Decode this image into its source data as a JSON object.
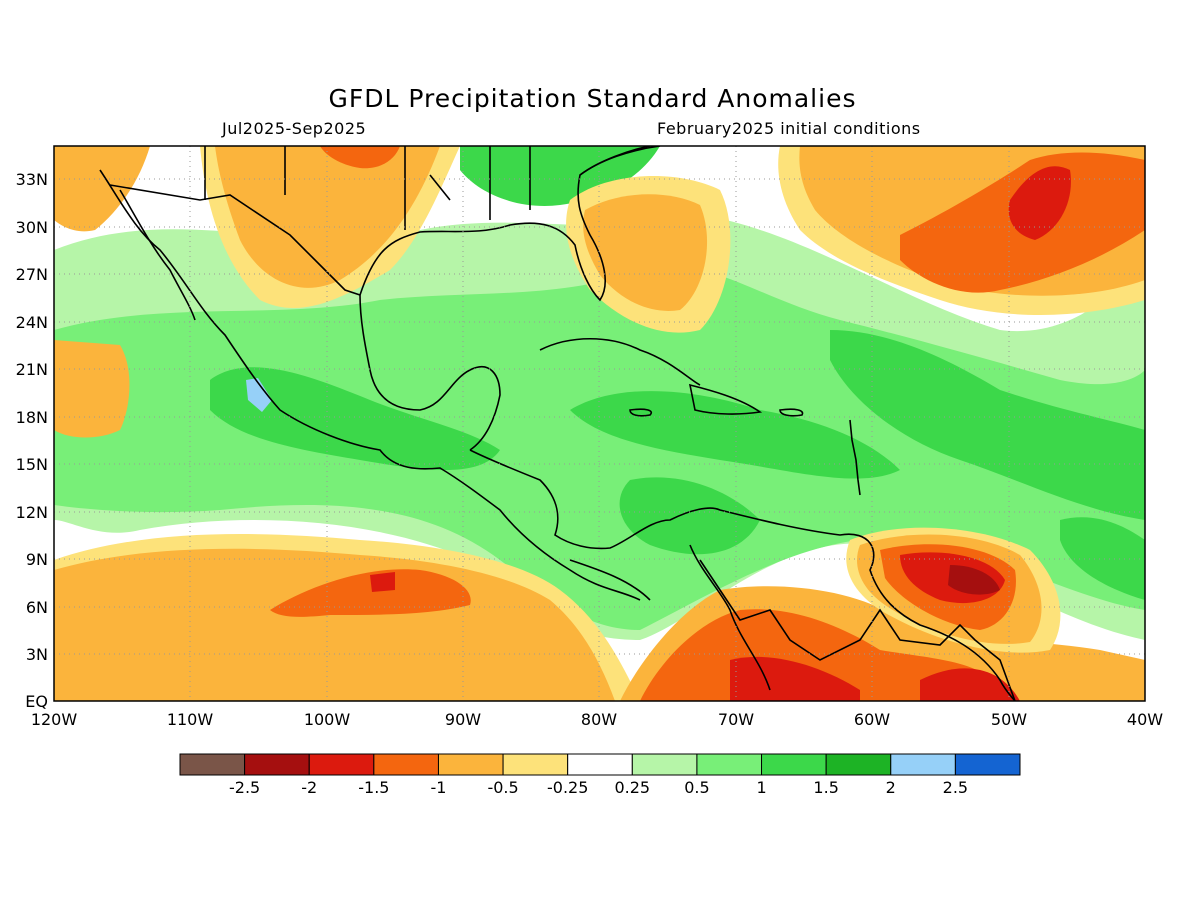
{
  "title": "GFDL Precipitation Standard Anomalies",
  "period": "Jul2025-Sep2025",
  "initial_conditions": "February2025 initial conditions",
  "map": {
    "lat_labels": [
      "33N",
      "30N",
      "27N",
      "24N",
      "21N",
      "18N",
      "15N",
      "12N",
      "9N",
      "6N",
      "3N",
      "EQ"
    ],
    "lon_labels": [
      "120W",
      "110W",
      "100W",
      "90W",
      "80W",
      "70W",
      "60W",
      "50W",
      "40W"
    ],
    "lon_range": [
      -120,
      -40
    ],
    "lat_range": [
      0,
      35
    ],
    "grid": "dotted"
  },
  "colorbar": {
    "colors": [
      "#7a5548",
      "#a50f0f",
      "#dc1a0e",
      "#f4660f",
      "#fbb43c",
      "#fde27a",
      "#ffffff",
      "#b6f5a8",
      "#78ef78",
      "#3cd84a",
      "#1db325",
      "#96d0f8",
      "#1464d2"
    ],
    "tick_labels": [
      "-2.5",
      "-2",
      "-1.5",
      "-1",
      "-0.5",
      "-0.25",
      "0.25",
      "0.5",
      "1",
      "1.5",
      "2",
      "2.5"
    ]
  },
  "colors": {
    "neg_strong": "#a50f0f",
    "neg_high": "#dc1a0e",
    "neg_mid": "#f4660f",
    "neg_low": "#fbb43c",
    "neg_weak": "#fde27a",
    "pos_weak": "#b6f5a8",
    "pos_low": "#78ef78",
    "pos_mid": "#3cd84a",
    "pos_high": "#1db325",
    "pos_strong": "#96d0f8"
  }
}
